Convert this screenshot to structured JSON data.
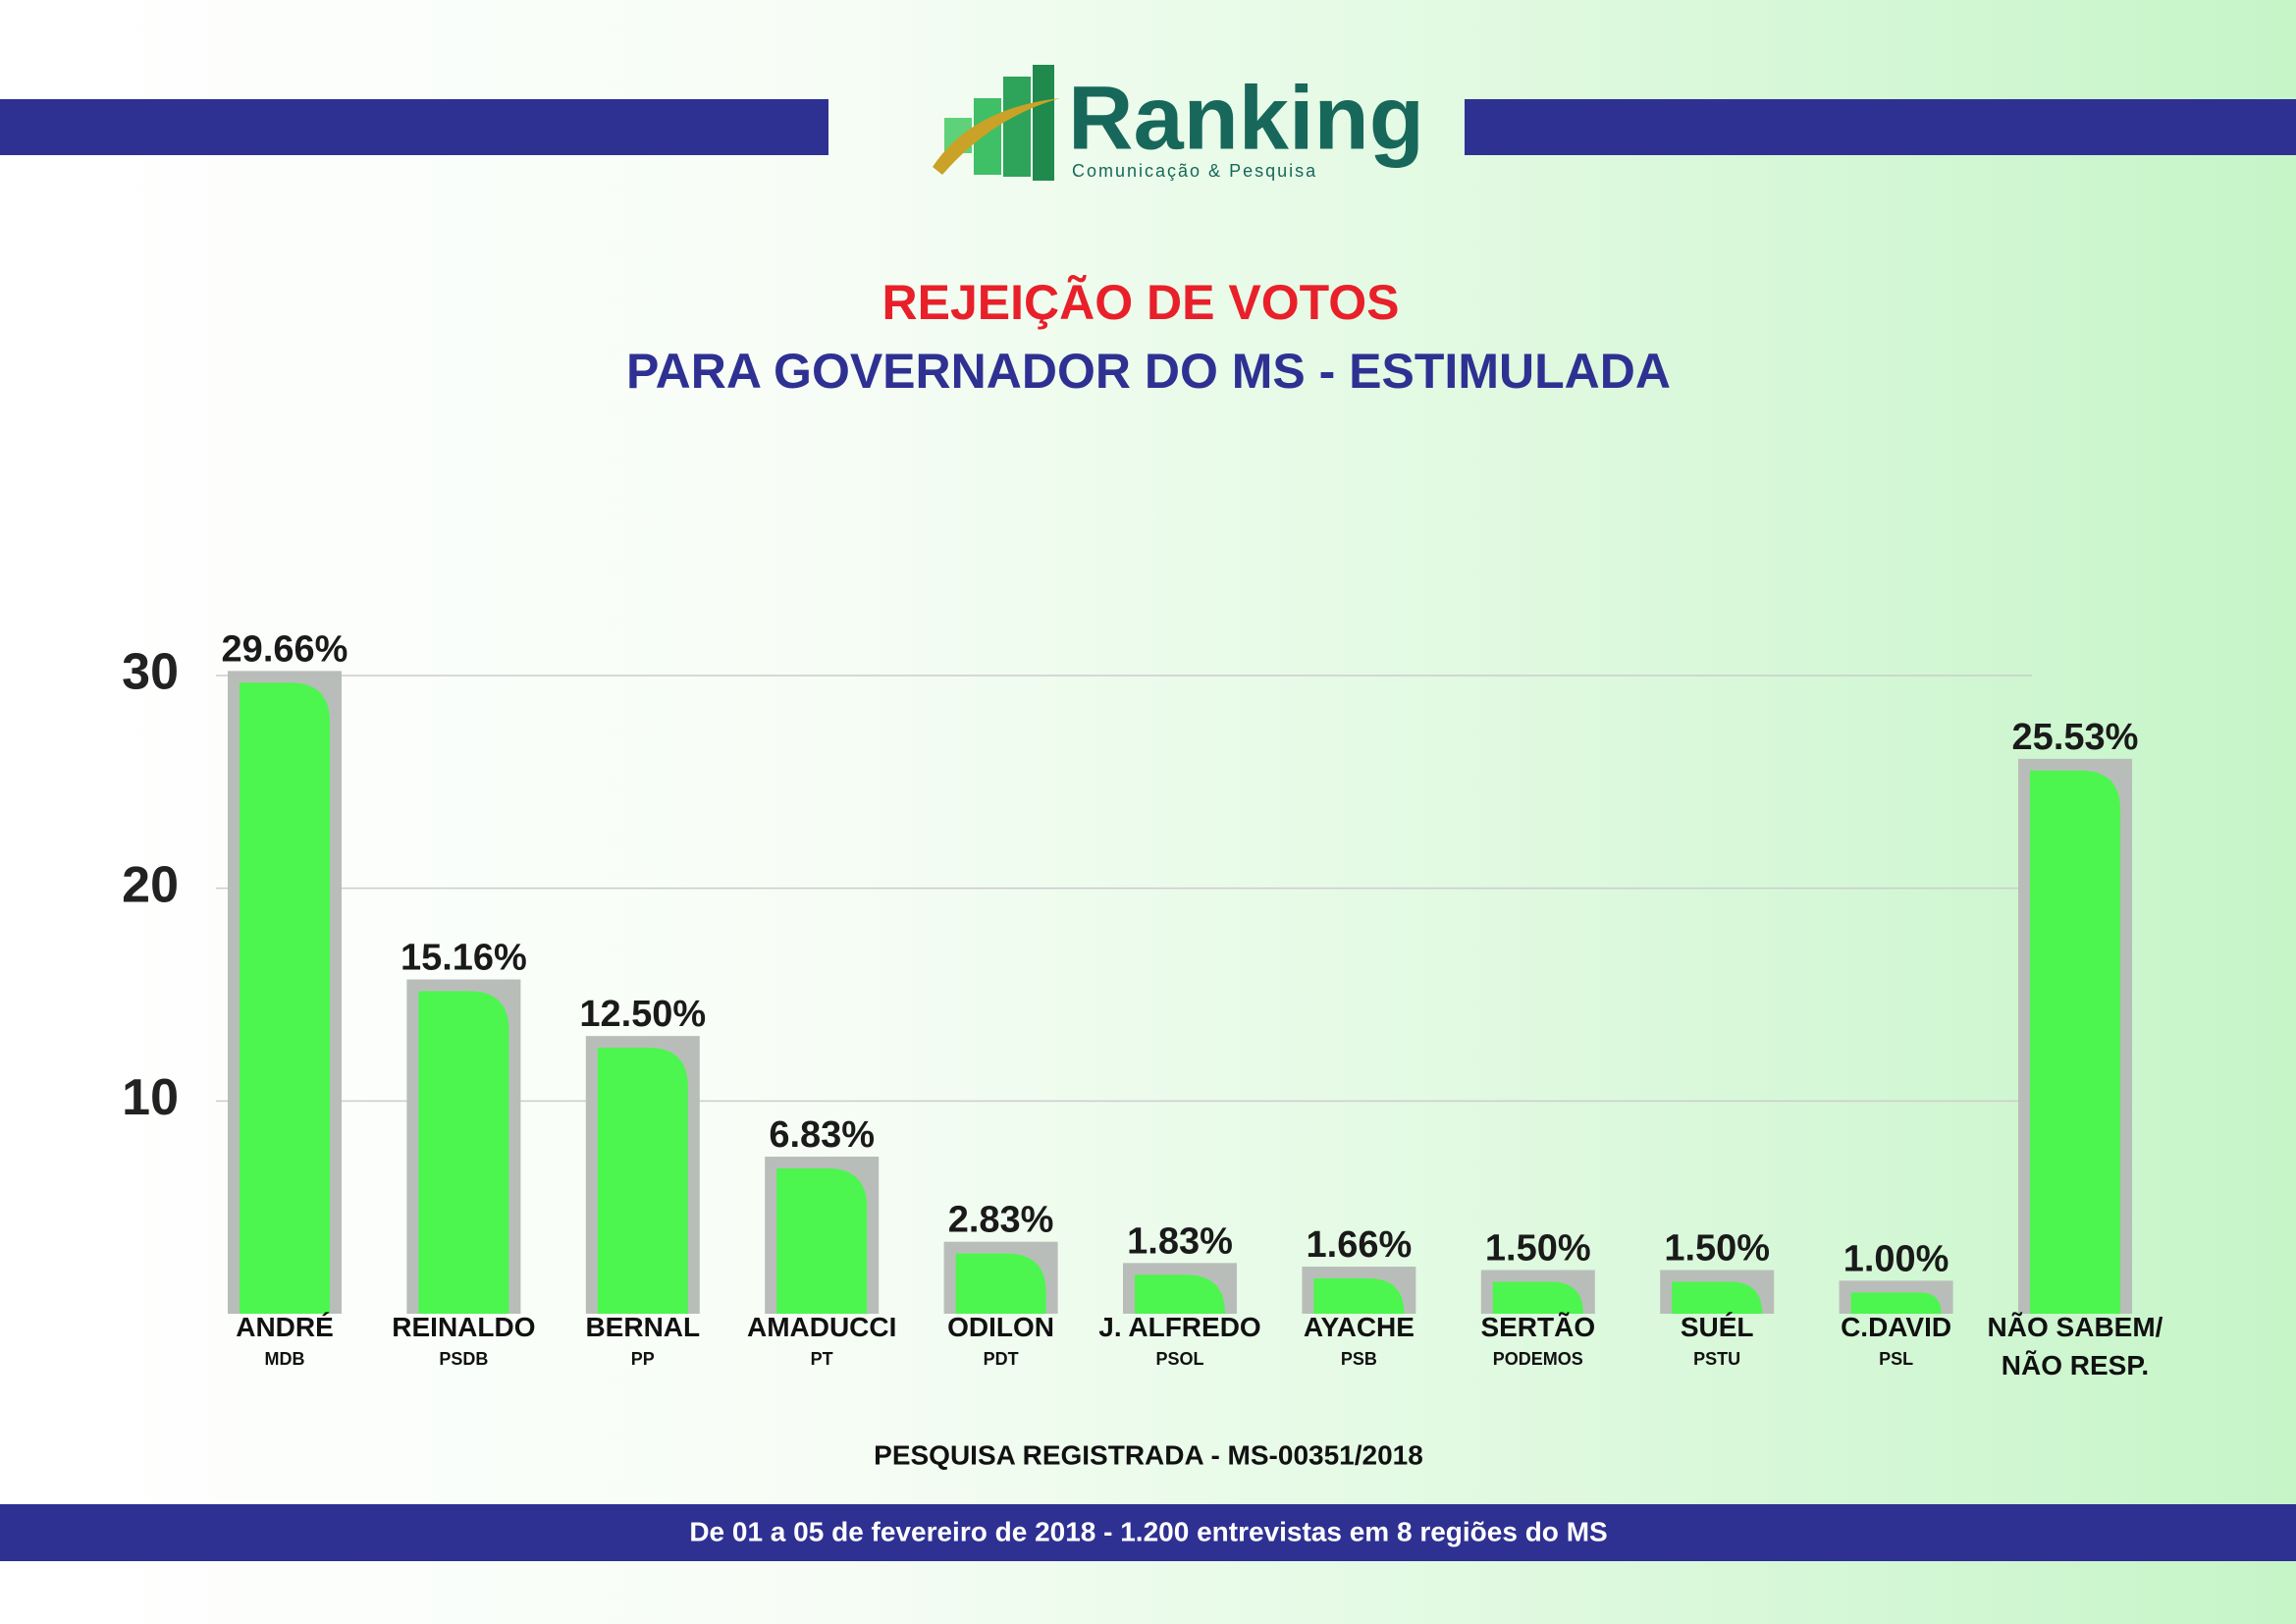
{
  "chart_data": {
    "type": "bar",
    "logo": "Ranking",
    "logo_tagline": "Comunicação & Pesquisa",
    "title": "REJEIÇÃO DE VOTOS",
    "subtitle": "PARA GOVERNADOR DO MS - ESTIMULADA",
    "categories": [
      "ANDRÉ",
      "REINALDO",
      "BERNAL",
      "AMADUCCI",
      "ODILON",
      "J. ALFREDO",
      "AYACHE",
      "SERTÃO",
      "SUÉL",
      "C.DAVID",
      "NÃO SABEM/ NÃO RESP."
    ],
    "parties": [
      "MDB",
      "PSDB",
      "PP",
      "PT",
      "PDT",
      "PSOL",
      "PSB",
      "PODEMOS",
      "PSTU",
      "PSL",
      null
    ],
    "values": [
      29.66,
      15.16,
      12.5,
      6.83,
      2.83,
      1.83,
      1.66,
      1.5,
      1.5,
      1.0,
      25.53
    ],
    "value_labels": [
      "29.66%",
      "15.16%",
      "12.50%",
      "6.83%",
      "2.83%",
      "1.83%",
      "1.66%",
      "1.50%",
      "1.50%",
      "1.00%",
      "25.53%"
    ],
    "color": "#4cf64e",
    "ylim": [
      0,
      30
    ],
    "yticks": [
      10,
      20,
      30
    ],
    "grid": true,
    "note": "PESQUISA REGISTRADA - MS-00351/2018",
    "footer": "De 01 a 05 de fevereiro de 2018 - 1.200 entrevistas em 8 regiões do MS"
  }
}
